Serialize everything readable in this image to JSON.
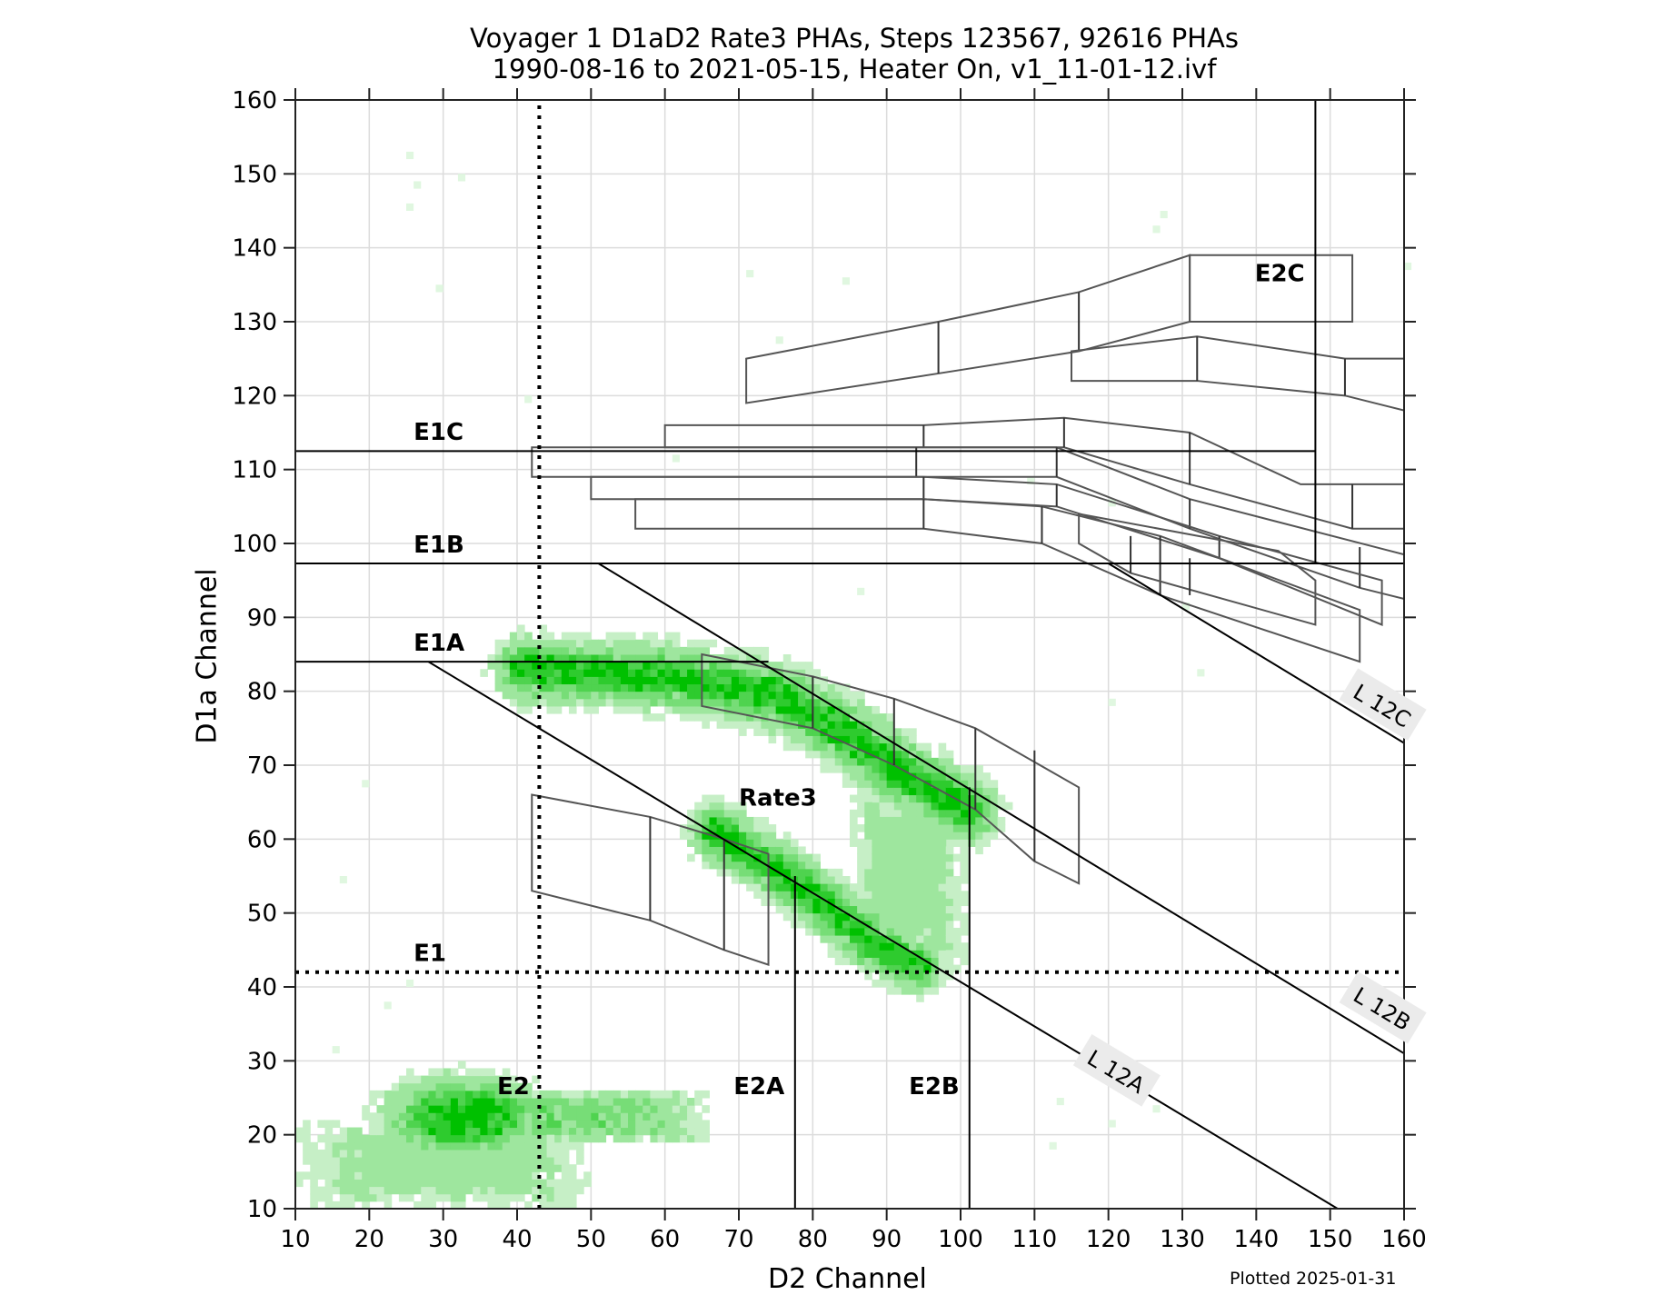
{
  "title": {
    "line1": "Voyager 1 D1aD2 Rate3 PHAs, Steps 123567, 92616 PHAs",
    "line2": "1990-08-16 to 2021-05-15, Heater On, v1_11-01-12.ivf"
  },
  "footer": "Plotted 2025-01-31",
  "colors": {
    "density": [
      "#e0f7e0",
      "#c6efc6",
      "#9ee69e",
      "#77dd77",
      "#4fd34f",
      "#2ecb2e",
      "#00c000"
    ],
    "grid": "#dcdcdc",
    "box": "#555555",
    "line": "#000000",
    "label_bg": "#ebebeb"
  },
  "chart_data": {
    "type": "heatmap",
    "title": "Voyager 1 D1aD2 Rate3 PHAs, Steps 123567, 92616 PHAs / 1990-08-16 to 2021-05-15, Heater On, v1_11-01-12.ivf",
    "xlabel": "D2 Channel",
    "ylabel": "D1a Channel",
    "xlim": [
      10,
      160
    ],
    "ylim": [
      10,
      160
    ],
    "xticks": [
      10,
      20,
      30,
      40,
      50,
      60,
      70,
      80,
      90,
      100,
      110,
      120,
      130,
      140,
      150,
      160
    ],
    "yticks": [
      10,
      20,
      30,
      40,
      50,
      60,
      70,
      80,
      90,
      100,
      110,
      120,
      130,
      140,
      150,
      160
    ],
    "grid": true,
    "bin_size": 1,
    "total_phas": 92616,
    "density_regions": [
      {
        "name": "E2 core",
        "cx": 33,
        "cy": 22.5,
        "rx": 7,
        "ry": 3.5,
        "peak": 6
      },
      {
        "name": "E2 tail",
        "x0": 20,
        "x1": 66,
        "y0": 19,
        "y1": 26,
        "peak": 3
      },
      {
        "name": "E2 low spread",
        "x0": 10,
        "x1": 50,
        "y0": 10,
        "y1": 22,
        "peak": 2
      },
      {
        "name": "Rate3 upper band",
        "path": [
          [
            41,
            83
          ],
          [
            60,
            82
          ],
          [
            75,
            79.5
          ],
          [
            85,
            74
          ],
          [
            92,
            69
          ],
          [
            101,
            64
          ]
        ],
        "width": 3.5,
        "peak": 5
      },
      {
        "name": "Rate3 lower band",
        "path": [
          [
            67,
            61
          ],
          [
            75,
            56
          ],
          [
            82,
            51
          ],
          [
            88,
            46
          ],
          [
            94,
            43
          ]
        ],
        "width": 3,
        "peak": 5
      },
      {
        "name": "Rate3 fill",
        "x0": 85,
        "x1": 101,
        "y0": 42,
        "y1": 68,
        "peak": 2
      }
    ],
    "reference_lines": [
      {
        "name": "E1",
        "type": "hline",
        "y": 42,
        "style": "dotted"
      },
      {
        "name": "E2",
        "type": "vline",
        "x": 43,
        "style": "dotted",
        "y_range": [
          10,
          160
        ]
      },
      {
        "name": "E1A",
        "type": "hline",
        "y": 84,
        "x_range": [
          10,
          74
        ]
      },
      {
        "name": "E1B",
        "type": "hline",
        "y": 97.3,
        "x_range": [
          10,
          160
        ]
      },
      {
        "name": "E1C",
        "type": "hline",
        "y": 112.5,
        "x_range": [
          10,
          148
        ]
      },
      {
        "name": "E2A",
        "type": "vline",
        "x": 77.6,
        "y_range": [
          10,
          55
        ]
      },
      {
        "name": "E2B",
        "type": "vline",
        "x": 101.2,
        "y_range": [
          10,
          67
        ]
      },
      {
        "name": "E2C",
        "type": "vline",
        "x": 148,
        "y_range": [
          97.3,
          160
        ]
      },
      {
        "name": "L 12A",
        "type": "segment",
        "from": [
          28,
          84
        ],
        "to": [
          151,
          10
        ]
      },
      {
        "name": "L 12B",
        "type": "segment",
        "from": [
          51,
          97.3
        ],
        "to": [
          160,
          31
        ]
      },
      {
        "name": "L 12C",
        "type": "segment",
        "from": [
          120,
          97.3
        ],
        "to": [
          160,
          73
        ]
      }
    ],
    "region_labels": [
      {
        "text": "E1C",
        "x": 26,
        "y": 114
      },
      {
        "text": "E1B",
        "x": 26,
        "y": 98.8
      },
      {
        "text": "E1A",
        "x": 26,
        "y": 85.5
      },
      {
        "text": "E1",
        "x": 26,
        "y": 43.5
      },
      {
        "text": "E2",
        "x": 37.3,
        "y": 25.5
      },
      {
        "text": "E2A",
        "x": 69.3,
        "y": 25.5
      },
      {
        "text": "E2B",
        "x": 93,
        "y": 25.5
      },
      {
        "text": "E2C",
        "x": 139.8,
        "y": 135.5
      },
      {
        "text": "Rate3",
        "x": 70,
        "y": 64.5
      }
    ],
    "line_labels": [
      {
        "text": "L 12A",
        "x": 121,
        "y": 28.5,
        "angle": 31
      },
      {
        "text": "L 12B",
        "x": 157,
        "y": 37,
        "angle": 31
      },
      {
        "text": "L 12C",
        "x": 157,
        "y": 78,
        "angle": 31
      }
    ],
    "boxes": [
      {
        "points": [
          [
            71,
            125
          ],
          [
            97,
            130
          ],
          [
            116,
            134
          ],
          [
            131,
            139
          ],
          [
            131,
            130
          ],
          [
            116,
            126
          ],
          [
            97,
            123
          ],
          [
            71,
            119
          ]
        ],
        "dividers": [
          [
            97,
            130,
            97,
            123
          ],
          [
            116,
            134,
            116,
            126
          ]
        ]
      },
      {
        "points": [
          [
            131,
            139
          ],
          [
            153,
            139
          ],
          [
            153,
            130
          ],
          [
            131,
            130
          ]
        ],
        "dividers": []
      },
      {
        "points": [
          [
            115,
            126
          ],
          [
            132,
            128
          ],
          [
            152,
            125
          ],
          [
            160,
            125
          ],
          [
            160,
            118
          ],
          [
            152,
            120
          ],
          [
            132,
            122
          ],
          [
            115,
            122
          ]
        ],
        "dividers": [
          [
            132,
            128,
            132,
            122
          ],
          [
            152,
            125,
            152,
            120
          ]
        ]
      },
      {
        "points": [
          [
            60,
            116
          ],
          [
            95,
            116
          ],
          [
            114,
            117
          ],
          [
            131,
            115
          ],
          [
            146,
            108
          ],
          [
            160,
            108
          ],
          [
            160,
            102
          ],
          [
            153,
            102
          ],
          [
            131,
            108
          ],
          [
            114,
            113
          ],
          [
            95,
            113
          ],
          [
            60,
            113
          ]
        ],
        "dividers": [
          [
            95,
            116,
            95,
            113
          ],
          [
            114,
            117,
            114,
            113
          ],
          [
            131,
            115,
            131,
            108
          ],
          [
            153,
            108,
            153,
            102
          ]
        ]
      },
      {
        "points": [
          [
            42,
            113
          ],
          [
            94,
            113
          ],
          [
            113,
            113
          ],
          [
            131,
            106
          ],
          [
            160,
            98.5
          ],
          [
            160,
            92.5
          ],
          [
            154,
            94
          ],
          [
            131,
            102
          ],
          [
            113,
            109
          ],
          [
            94,
            109
          ],
          [
            42,
            109
          ]
        ],
        "dividers": [
          [
            94,
            113,
            94,
            109
          ],
          [
            113,
            113,
            113,
            109
          ],
          [
            131,
            106,
            131,
            102
          ],
          [
            154,
            99.5,
            154,
            94
          ]
        ]
      },
      {
        "points": [
          [
            50,
            109
          ],
          [
            95,
            109
          ],
          [
            113,
            108
          ],
          [
            135,
            101
          ],
          [
            157,
            95
          ],
          [
            157,
            89
          ],
          [
            135,
            98
          ],
          [
            113,
            105
          ],
          [
            95,
            106
          ],
          [
            50,
            106
          ]
        ],
        "dividers": [
          [
            95,
            109,
            95,
            106
          ],
          [
            113,
            108,
            113,
            105
          ],
          [
            135,
            101,
            135,
            98
          ]
        ]
      },
      {
        "points": [
          [
            56,
            106
          ],
          [
            95,
            106
          ],
          [
            111,
            105
          ],
          [
            127,
            101
          ],
          [
            154,
            91
          ],
          [
            154,
            84
          ],
          [
            127,
            93
          ],
          [
            111,
            100
          ],
          [
            95,
            102
          ],
          [
            56,
            102
          ]
        ],
        "dividers": [
          [
            95,
            106,
            95,
            102
          ],
          [
            111,
            105,
            111,
            100
          ],
          [
            127,
            101,
            127,
            93
          ]
        ]
      },
      {
        "points": [
          [
            116,
            104
          ],
          [
            143,
            99
          ],
          [
            148,
            95
          ],
          [
            148,
            89
          ],
          [
            123,
            96
          ],
          [
            116,
            100
          ]
        ],
        "dividers": [
          [
            123,
            101,
            123,
            96
          ],
          [
            131,
            98,
            131,
            93
          ]
        ]
      },
      {
        "points": [
          [
            65,
            85
          ],
          [
            80,
            82
          ],
          [
            91,
            79
          ],
          [
            102,
            75
          ],
          [
            116,
            67
          ],
          [
            116,
            54
          ],
          [
            110,
            57
          ],
          [
            102,
            64
          ],
          [
            91,
            70
          ],
          [
            80,
            75
          ],
          [
            65,
            78
          ]
        ],
        "dividers": [
          [
            80,
            82,
            80,
            75
          ],
          [
            91,
            79,
            91,
            70
          ],
          [
            102,
            75,
            102,
            64
          ],
          [
            110,
            72,
            110,
            57
          ]
        ]
      },
      {
        "points": [
          [
            42,
            66
          ],
          [
            58,
            63
          ],
          [
            68,
            60
          ],
          [
            74,
            58
          ],
          [
            74,
            43
          ],
          [
            68,
            45
          ],
          [
            58,
            49
          ],
          [
            42,
            53
          ]
        ],
        "dividers": [
          [
            58,
            63,
            58,
            49
          ],
          [
            68,
            60,
            68,
            45
          ]
        ]
      }
    ],
    "scatter_points": [
      [
        25,
        152
      ],
      [
        26,
        148
      ],
      [
        25,
        145
      ],
      [
        29,
        134
      ],
      [
        32,
        149
      ],
      [
        127,
        144
      ],
      [
        126,
        142
      ],
      [
        71,
        136
      ],
      [
        84,
        135
      ],
      [
        75,
        127
      ],
      [
        41,
        119
      ],
      [
        160,
        137
      ],
      [
        61,
        111
      ],
      [
        109,
        108
      ],
      [
        120,
        105
      ],
      [
        86,
        93
      ],
      [
        132,
        82
      ],
      [
        130,
        91
      ],
      [
        120,
        78
      ],
      [
        19,
        67
      ],
      [
        16,
        54
      ],
      [
        25,
        40
      ],
      [
        22,
        37
      ],
      [
        15,
        31
      ],
      [
        125,
        27
      ],
      [
        120,
        21
      ],
      [
        126,
        23
      ],
      [
        113,
        24
      ],
      [
        112,
        18
      ]
    ]
  },
  "axes": {
    "x_label": "D2 Channel",
    "y_label": "D1a Channel"
  }
}
